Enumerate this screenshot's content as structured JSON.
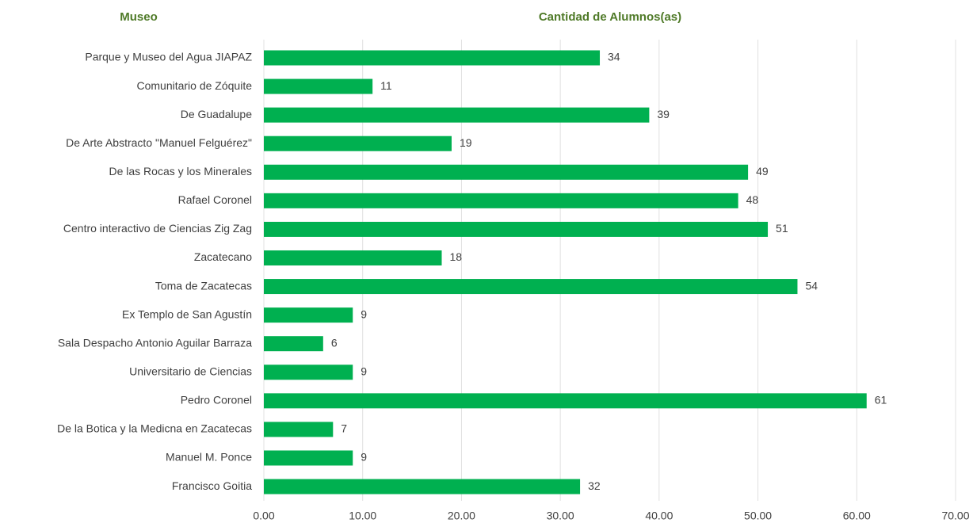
{
  "chart_data": {
    "type": "barh",
    "ylabel": "Museo",
    "xlabel": "Cantidad de Alumnos(as)",
    "categories": [
      "Parque y Museo del Agua JIAPAZ",
      "Comunitario de Zóquite",
      "De Guadalupe",
      "De Arte Abstracto \"Manuel Felguérez\"",
      "De las Rocas y los Minerales",
      "Rafael Coronel",
      "Centro interactivo de Ciencias Zig Zag",
      "Zacatecano",
      "Toma de Zacatecas",
      "Ex Templo de San Agustín",
      "Sala Despacho Antonio Aguilar Barraza",
      "Universitario de Ciencias",
      "Pedro Coronel",
      "De la Botica y la Medicna en Zacatecas",
      "Manuel M. Ponce",
      "Francisco Goitia"
    ],
    "values": [
      34,
      11,
      39,
      19,
      49,
      48,
      51,
      18,
      54,
      9,
      6,
      9,
      61,
      7,
      9,
      32
    ],
    "color": "#00b050",
    "xlim": [
      0,
      70
    ],
    "xticks": [
      {
        "value": 0,
        "label": "0.00"
      },
      {
        "value": 10,
        "label": "10.00"
      },
      {
        "value": 20,
        "label": "20.00"
      },
      {
        "value": 30,
        "label": "30.00"
      },
      {
        "value": 40,
        "label": "40.00"
      },
      {
        "value": 50,
        "label": "50.00"
      },
      {
        "value": 60,
        "label": "60.00"
      },
      {
        "value": 70,
        "label": "70.00"
      }
    ],
    "grid": true
  }
}
